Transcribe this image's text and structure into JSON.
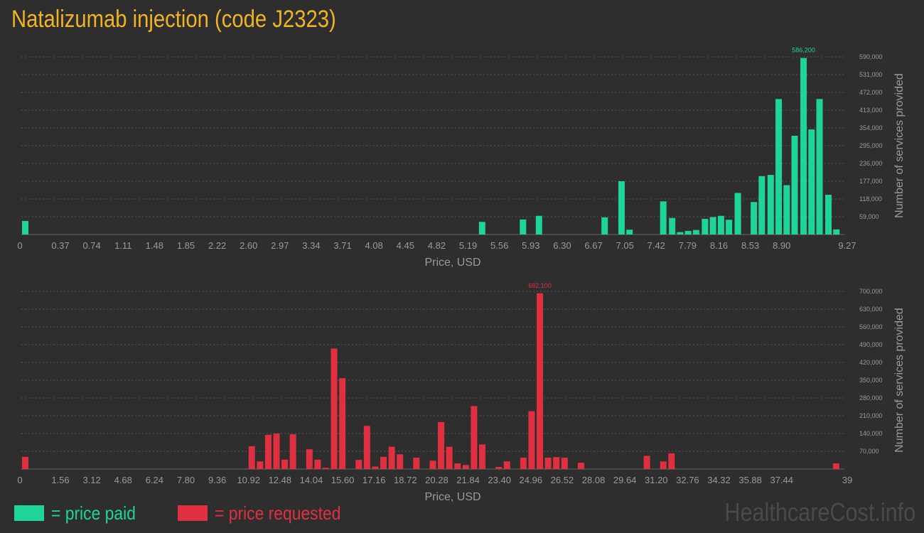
{
  "title": "Natalizumab injection (code J2323)",
  "colors": {
    "paid": "#1ed49a",
    "requested": "#e0303f",
    "title": "#f0b323",
    "grid": "#555555",
    "text": "#9a9a9a"
  },
  "legend": {
    "paid_label": "= price paid",
    "requested_label": "= price requested"
  },
  "watermark": "HealthcareCost.info",
  "chart_data": [
    {
      "type": "bar",
      "name": "price paid",
      "xlabel": "Price, USD",
      "ylabel": "Number of services provided",
      "x_tick_labels": [
        "0",
        "0.37",
        "0.74",
        "1.11",
        "1.48",
        "1.85",
        "2.22",
        "2.60",
        "2.97",
        "3.34",
        "3.71",
        "4.08",
        "4.45",
        "4.82",
        "5.19",
        "5.56",
        "5.93",
        "6.30",
        "6.67",
        "7.05",
        "7.42",
        "7.79",
        "8.16",
        "8.53",
        "8.90",
        "9.27"
      ],
      "xlim": [
        0,
        9.27
      ],
      "ylim": [
        0,
        590000
      ],
      "y_ticks": [
        "59,000",
        "118,000",
        "177,000",
        "236,000",
        "295,000",
        "354,000",
        "413,000",
        "472,000",
        "531,000",
        "590,000"
      ],
      "peak_label": "586,200",
      "bars": [
        {
          "x": 0.0,
          "y": 45000
        },
        {
          "x": 5.19,
          "y": 42000
        },
        {
          "x": 5.65,
          "y": 50000
        },
        {
          "x": 5.83,
          "y": 62000
        },
        {
          "x": 6.57,
          "y": 57000
        },
        {
          "x": 6.76,
          "y": 177000
        },
        {
          "x": 6.85,
          "y": 16000
        },
        {
          "x": 7.23,
          "y": 110000
        },
        {
          "x": 7.33,
          "y": 55000
        },
        {
          "x": 7.42,
          "y": 8000
        },
        {
          "x": 7.51,
          "y": 12000
        },
        {
          "x": 7.6,
          "y": 15000
        },
        {
          "x": 7.7,
          "y": 52000
        },
        {
          "x": 7.79,
          "y": 58000
        },
        {
          "x": 7.88,
          "y": 62000
        },
        {
          "x": 7.97,
          "y": 49000
        },
        {
          "x": 8.07,
          "y": 138000
        },
        {
          "x": 8.25,
          "y": 108000
        },
        {
          "x": 8.34,
          "y": 194000
        },
        {
          "x": 8.44,
          "y": 198000
        },
        {
          "x": 8.53,
          "y": 450000
        },
        {
          "x": 8.62,
          "y": 164000
        },
        {
          "x": 8.71,
          "y": 328000
        },
        {
          "x": 8.81,
          "y": 586200
        },
        {
          "x": 8.9,
          "y": 349000
        },
        {
          "x": 8.99,
          "y": 450000
        },
        {
          "x": 9.09,
          "y": 132000
        },
        {
          "x": 9.18,
          "y": 17000
        }
      ]
    },
    {
      "type": "bar",
      "name": "price requested",
      "xlabel": "Price, USD",
      "ylabel": "Number of services provided",
      "x_tick_labels": [
        "0",
        "1.56",
        "3.12",
        "4.68",
        "6.24",
        "7.80",
        "9.36",
        "10.92",
        "12.48",
        "14.04",
        "15.60",
        "17.16",
        "18.72",
        "20.28",
        "21.84",
        "23.40",
        "24.96",
        "26.52",
        "28.08",
        "29.64",
        "31.20",
        "32.76",
        "34.32",
        "35.88",
        "37.44",
        "39"
      ],
      "xlim": [
        0,
        39
      ],
      "ylim": [
        0,
        700000
      ],
      "y_ticks": [
        "70,000",
        "140,000",
        "210,000",
        "280,000",
        "350,000",
        "420,000",
        "490,000",
        "560,000",
        "630,000",
        "700,000"
      ],
      "peak_label": "692,100",
      "bars": [
        {
          "x": 0.0,
          "y": 48000
        },
        {
          "x": 10.92,
          "y": 90000
        },
        {
          "x": 11.31,
          "y": 30000
        },
        {
          "x": 11.7,
          "y": 135000
        },
        {
          "x": 12.09,
          "y": 140000
        },
        {
          "x": 12.48,
          "y": 37000
        },
        {
          "x": 12.87,
          "y": 137000
        },
        {
          "x": 13.65,
          "y": 78000
        },
        {
          "x": 14.04,
          "y": 37000
        },
        {
          "x": 14.43,
          "y": 5000
        },
        {
          "x": 14.82,
          "y": 475000
        },
        {
          "x": 15.21,
          "y": 358000
        },
        {
          "x": 15.99,
          "y": 36000
        },
        {
          "x": 16.38,
          "y": 170000
        },
        {
          "x": 16.77,
          "y": 10000
        },
        {
          "x": 17.16,
          "y": 48000
        },
        {
          "x": 17.55,
          "y": 88000
        },
        {
          "x": 17.94,
          "y": 58000
        },
        {
          "x": 18.72,
          "y": 45000
        },
        {
          "x": 19.5,
          "y": 33000
        },
        {
          "x": 19.89,
          "y": 185000
        },
        {
          "x": 20.28,
          "y": 88000
        },
        {
          "x": 20.67,
          "y": 22000
        },
        {
          "x": 21.06,
          "y": 16000
        },
        {
          "x": 21.45,
          "y": 248000
        },
        {
          "x": 21.84,
          "y": 97000
        },
        {
          "x": 22.62,
          "y": 8000
        },
        {
          "x": 23.01,
          "y": 30000
        },
        {
          "x": 23.79,
          "y": 45000
        },
        {
          "x": 24.18,
          "y": 228000
        },
        {
          "x": 24.57,
          "y": 692100
        },
        {
          "x": 24.96,
          "y": 45000
        },
        {
          "x": 25.35,
          "y": 47000
        },
        {
          "x": 25.74,
          "y": 45000
        },
        {
          "x": 26.52,
          "y": 25000
        },
        {
          "x": 29.64,
          "y": 52000
        },
        {
          "x": 30.42,
          "y": 30000
        },
        {
          "x": 30.81,
          "y": 62000
        },
        {
          "x": 38.61,
          "y": 22000
        }
      ]
    }
  ]
}
